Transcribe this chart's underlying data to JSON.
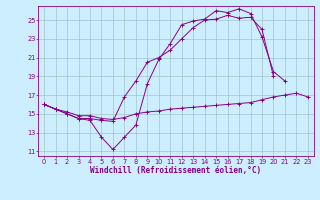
{
  "xlabel": "Windchill (Refroidissement éolien,°C)",
  "bg_color": "#cceeff",
  "line_color": "#880088",
  "grid_color": "#99bbbb",
  "x_ticks": [
    0,
    1,
    2,
    3,
    4,
    5,
    6,
    7,
    8,
    9,
    10,
    11,
    12,
    13,
    14,
    15,
    16,
    17,
    18,
    19,
    20,
    21,
    22,
    23
  ],
  "y_ticks": [
    11,
    13,
    15,
    17,
    19,
    21,
    23,
    25
  ],
  "xlim": [
    -0.5,
    23.5
  ],
  "ylim": [
    10.5,
    26.5
  ],
  "series": [
    [
      16.0,
      15.5,
      15.0,
      14.5,
      14.3,
      12.5,
      11.2,
      12.5,
      13.8,
      18.2,
      20.8,
      22.5,
      24.5,
      24.9,
      25.1,
      26.0,
      25.8,
      26.2,
      25.7,
      23.2,
      19.5,
      18.5,
      null,
      null
    ],
    [
      16.0,
      15.5,
      15.0,
      14.5,
      14.5,
      14.3,
      14.2,
      16.8,
      18.5,
      20.5,
      21.0,
      21.8,
      23.0,
      24.2,
      25.0,
      25.1,
      25.5,
      25.2,
      25.3,
      24.0,
      19.0,
      null,
      null,
      null
    ],
    [
      16.0,
      15.5,
      15.2,
      14.8,
      14.8,
      14.5,
      14.4,
      14.6,
      15.0,
      15.2,
      15.3,
      15.5,
      15.6,
      15.7,
      15.8,
      15.9,
      16.0,
      16.1,
      16.2,
      16.5,
      16.8,
      17.0,
      17.2,
      16.8
    ]
  ],
  "xlabel_fontsize": 5.5,
  "tick_fontsize": 4.8,
  "marker_size": 2.5,
  "lw": 0.7
}
